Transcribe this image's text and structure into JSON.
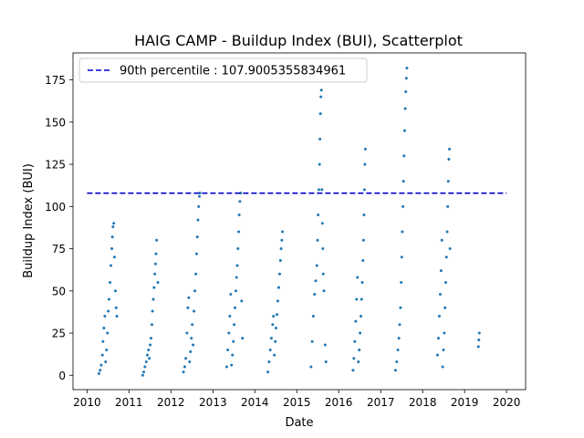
{
  "chart_data": {
    "type": "scatter",
    "title": "HAIG CAMP - Buildup Index (BUI), Scatterplot",
    "xlabel": "Date",
    "ylabel": "Buildup Index (BUI)",
    "x_scale": "date",
    "xlim": [
      "2009-09-01",
      "2020-06-15"
    ],
    "ylim": [
      -8.5,
      191
    ],
    "x_ticks": [
      "2010",
      "2011",
      "2012",
      "2013",
      "2014",
      "2015",
      "2016",
      "2017",
      "2018",
      "2019",
      "2020"
    ],
    "y_ticks": [
      0,
      25,
      50,
      75,
      100,
      125,
      150,
      175
    ],
    "grid": false,
    "legend_position": "top-left",
    "series": [
      {
        "name": "",
        "color": "#1f77b4",
        "marker": "dot",
        "points": [
          {
            "x": "2010-04-15",
            "y": 1
          },
          {
            "x": "2010-04-25",
            "y": 3
          },
          {
            "x": "2010-05-05",
            "y": 6
          },
          {
            "x": "2010-05-15",
            "y": 12
          },
          {
            "x": "2010-05-20",
            "y": 20
          },
          {
            "x": "2010-05-28",
            "y": 28
          },
          {
            "x": "2010-06-05",
            "y": 35
          },
          {
            "x": "2010-06-12",
            "y": 8
          },
          {
            "x": "2010-06-20",
            "y": 15
          },
          {
            "x": "2010-06-28",
            "y": 25
          },
          {
            "x": "2010-07-05",
            "y": 38
          },
          {
            "x": "2010-07-12",
            "y": 45
          },
          {
            "x": "2010-07-20",
            "y": 55
          },
          {
            "x": "2010-07-28",
            "y": 65
          },
          {
            "x": "2010-08-05",
            "y": 75
          },
          {
            "x": "2010-08-10",
            "y": 82
          },
          {
            "x": "2010-08-15",
            "y": 88
          },
          {
            "x": "2010-08-22",
            "y": 90
          },
          {
            "x": "2010-08-28",
            "y": 70
          },
          {
            "x": "2010-09-05",
            "y": 50
          },
          {
            "x": "2010-09-12",
            "y": 40
          },
          {
            "x": "2010-09-18",
            "y": 35
          },
          {
            "x": "2011-05-01",
            "y": 0
          },
          {
            "x": "2011-05-10",
            "y": 2
          },
          {
            "x": "2011-05-20",
            "y": 5
          },
          {
            "x": "2011-06-01",
            "y": 8
          },
          {
            "x": "2011-06-10",
            "y": 12
          },
          {
            "x": "2011-06-20",
            "y": 15
          },
          {
            "x": "2011-06-28",
            "y": 10
          },
          {
            "x": "2011-07-05",
            "y": 18
          },
          {
            "x": "2011-07-12",
            "y": 22
          },
          {
            "x": "2011-07-20",
            "y": 30
          },
          {
            "x": "2011-07-25",
            "y": 38
          },
          {
            "x": "2011-08-01",
            "y": 45
          },
          {
            "x": "2011-08-08",
            "y": 52
          },
          {
            "x": "2011-08-14",
            "y": 60
          },
          {
            "x": "2011-08-20",
            "y": 66
          },
          {
            "x": "2011-08-25",
            "y": 72
          },
          {
            "x": "2011-08-30",
            "y": 80
          },
          {
            "x": "2011-09-10",
            "y": 55
          },
          {
            "x": "2012-04-20",
            "y": 2
          },
          {
            "x": "2012-05-01",
            "y": 5
          },
          {
            "x": "2012-05-10",
            "y": 10
          },
          {
            "x": "2012-05-20",
            "y": 25
          },
          {
            "x": "2012-05-28",
            "y": 40
          },
          {
            "x": "2012-06-05",
            "y": 46
          },
          {
            "x": "2012-06-12",
            "y": 8
          },
          {
            "x": "2012-06-20",
            "y": 14
          },
          {
            "x": "2012-06-28",
            "y": 22
          },
          {
            "x": "2012-07-05",
            "y": 30
          },
          {
            "x": "2012-07-12",
            "y": 18
          },
          {
            "x": "2012-07-20",
            "y": 38
          },
          {
            "x": "2012-07-28",
            "y": 50
          },
          {
            "x": "2012-08-05",
            "y": 60
          },
          {
            "x": "2012-08-12",
            "y": 72
          },
          {
            "x": "2012-08-18",
            "y": 82
          },
          {
            "x": "2012-08-24",
            "y": 92
          },
          {
            "x": "2012-08-30",
            "y": 100
          },
          {
            "x": "2012-09-05",
            "y": 106
          },
          {
            "x": "2012-09-10",
            "y": 108
          },
          {
            "x": "2013-05-01",
            "y": 5
          },
          {
            "x": "2013-05-10",
            "y": 15
          },
          {
            "x": "2013-05-20",
            "y": 25
          },
          {
            "x": "2013-05-28",
            "y": 35
          },
          {
            "x": "2013-06-05",
            "y": 48
          },
          {
            "x": "2013-06-12",
            "y": 6
          },
          {
            "x": "2013-06-20",
            "y": 12
          },
          {
            "x": "2013-06-28",
            "y": 20
          },
          {
            "x": "2013-07-05",
            "y": 30
          },
          {
            "x": "2013-07-12",
            "y": 40
          },
          {
            "x": "2013-07-20",
            "y": 50
          },
          {
            "x": "2013-07-26",
            "y": 58
          },
          {
            "x": "2013-08-01",
            "y": 65
          },
          {
            "x": "2013-08-07",
            "y": 75
          },
          {
            "x": "2013-08-13",
            "y": 85
          },
          {
            "x": "2013-08-18",
            "y": 95
          },
          {
            "x": "2013-08-24",
            "y": 103
          },
          {
            "x": "2013-08-30",
            "y": 108
          },
          {
            "x": "2013-09-08",
            "y": 44
          },
          {
            "x": "2013-09-15",
            "y": 22
          },
          {
            "x": "2014-04-25",
            "y": 2
          },
          {
            "x": "2014-05-05",
            "y": 8
          },
          {
            "x": "2014-05-15",
            "y": 15
          },
          {
            "x": "2014-05-25",
            "y": 22
          },
          {
            "x": "2014-06-05",
            "y": 30
          },
          {
            "x": "2014-06-12",
            "y": 35
          },
          {
            "x": "2014-06-20",
            "y": 12
          },
          {
            "x": "2014-06-28",
            "y": 20
          },
          {
            "x": "2014-07-05",
            "y": 28
          },
          {
            "x": "2014-07-12",
            "y": 36
          },
          {
            "x": "2014-07-20",
            "y": 44
          },
          {
            "x": "2014-07-28",
            "y": 52
          },
          {
            "x": "2014-08-05",
            "y": 60
          },
          {
            "x": "2014-08-12",
            "y": 68
          },
          {
            "x": "2014-08-18",
            "y": 75
          },
          {
            "x": "2014-08-24",
            "y": 80
          },
          {
            "x": "2014-08-30",
            "y": 85
          },
          {
            "x": "2015-05-05",
            "y": 5
          },
          {
            "x": "2015-05-15",
            "y": 20
          },
          {
            "x": "2015-05-25",
            "y": 35
          },
          {
            "x": "2015-06-05",
            "y": 48
          },
          {
            "x": "2015-06-15",
            "y": 56
          },
          {
            "x": "2015-06-25",
            "y": 65
          },
          {
            "x": "2015-07-01",
            "y": 80
          },
          {
            "x": "2015-07-06",
            "y": 95
          },
          {
            "x": "2015-07-12",
            "y": 110
          },
          {
            "x": "2015-07-18",
            "y": 125
          },
          {
            "x": "2015-07-22",
            "y": 140
          },
          {
            "x": "2015-07-26",
            "y": 155
          },
          {
            "x": "2015-07-30",
            "y": 165
          },
          {
            "x": "2015-08-03",
            "y": 169
          },
          {
            "x": "2015-08-08",
            "y": 110
          },
          {
            "x": "2015-08-12",
            "y": 90
          },
          {
            "x": "2015-08-16",
            "y": 75
          },
          {
            "x": "2015-08-20",
            "y": 60
          },
          {
            "x": "2015-08-25",
            "y": 50
          },
          {
            "x": "2015-09-05",
            "y": 18
          },
          {
            "x": "2015-09-12",
            "y": 8
          },
          {
            "x": "2016-05-05",
            "y": 3
          },
          {
            "x": "2016-05-12",
            "y": 10
          },
          {
            "x": "2016-05-20",
            "y": 20
          },
          {
            "x": "2016-05-28",
            "y": 32
          },
          {
            "x": "2016-06-05",
            "y": 45
          },
          {
            "x": "2016-06-12",
            "y": 58
          },
          {
            "x": "2016-06-20",
            "y": 8
          },
          {
            "x": "2016-06-28",
            "y": 15
          },
          {
            "x": "2016-07-05",
            "y": 25
          },
          {
            "x": "2016-07-12",
            "y": 35
          },
          {
            "x": "2016-07-18",
            "y": 45
          },
          {
            "x": "2016-07-24",
            "y": 55
          },
          {
            "x": "2016-07-30",
            "y": 68
          },
          {
            "x": "2016-08-04",
            "y": 80
          },
          {
            "x": "2016-08-08",
            "y": 95
          },
          {
            "x": "2016-08-12",
            "y": 110
          },
          {
            "x": "2016-08-16",
            "y": 125
          },
          {
            "x": "2016-08-20",
            "y": 134
          },
          {
            "x": "2017-05-10",
            "y": 3
          },
          {
            "x": "2017-05-20",
            "y": 8
          },
          {
            "x": "2017-05-30",
            "y": 15
          },
          {
            "x": "2017-06-08",
            "y": 22
          },
          {
            "x": "2017-06-15",
            "y": 30
          },
          {
            "x": "2017-06-22",
            "y": 40
          },
          {
            "x": "2017-06-28",
            "y": 55
          },
          {
            "x": "2017-07-03",
            "y": 70
          },
          {
            "x": "2017-07-08",
            "y": 85
          },
          {
            "x": "2017-07-13",
            "y": 100
          },
          {
            "x": "2017-07-18",
            "y": 115
          },
          {
            "x": "2017-07-23",
            "y": 130
          },
          {
            "x": "2017-07-28",
            "y": 145
          },
          {
            "x": "2017-08-02",
            "y": 158
          },
          {
            "x": "2017-08-07",
            "y": 168
          },
          {
            "x": "2017-08-12",
            "y": 176
          },
          {
            "x": "2017-08-17",
            "y": 182
          },
          {
            "x": "2018-05-10",
            "y": 12
          },
          {
            "x": "2018-05-18",
            "y": 22
          },
          {
            "x": "2018-05-26",
            "y": 35
          },
          {
            "x": "2018-06-03",
            "y": 48
          },
          {
            "x": "2018-06-10",
            "y": 62
          },
          {
            "x": "2018-06-17",
            "y": 80
          },
          {
            "x": "2018-06-24",
            "y": 5
          },
          {
            "x": "2018-07-01",
            "y": 15
          },
          {
            "x": "2018-07-08",
            "y": 25
          },
          {
            "x": "2018-07-15",
            "y": 40
          },
          {
            "x": "2018-07-21",
            "y": 55
          },
          {
            "x": "2018-07-27",
            "y": 70
          },
          {
            "x": "2018-08-02",
            "y": 85
          },
          {
            "x": "2018-08-07",
            "y": 100
          },
          {
            "x": "2018-08-12",
            "y": 115
          },
          {
            "x": "2018-08-17",
            "y": 128
          },
          {
            "x": "2018-08-22",
            "y": 134
          },
          {
            "x": "2018-08-27",
            "y": 75
          },
          {
            "x": "2019-05-01",
            "y": 17
          },
          {
            "x": "2019-05-05",
            "y": 21
          },
          {
            "x": "2019-05-09",
            "y": 25
          }
        ]
      }
    ],
    "reference_line": {
      "label": "90th percentile : 107.9005355834961",
      "y": 107.9005355834961,
      "x_start": "2010-01-01",
      "x_end": "2020-01-01",
      "color": "#0000cc",
      "style": "dashed"
    }
  }
}
